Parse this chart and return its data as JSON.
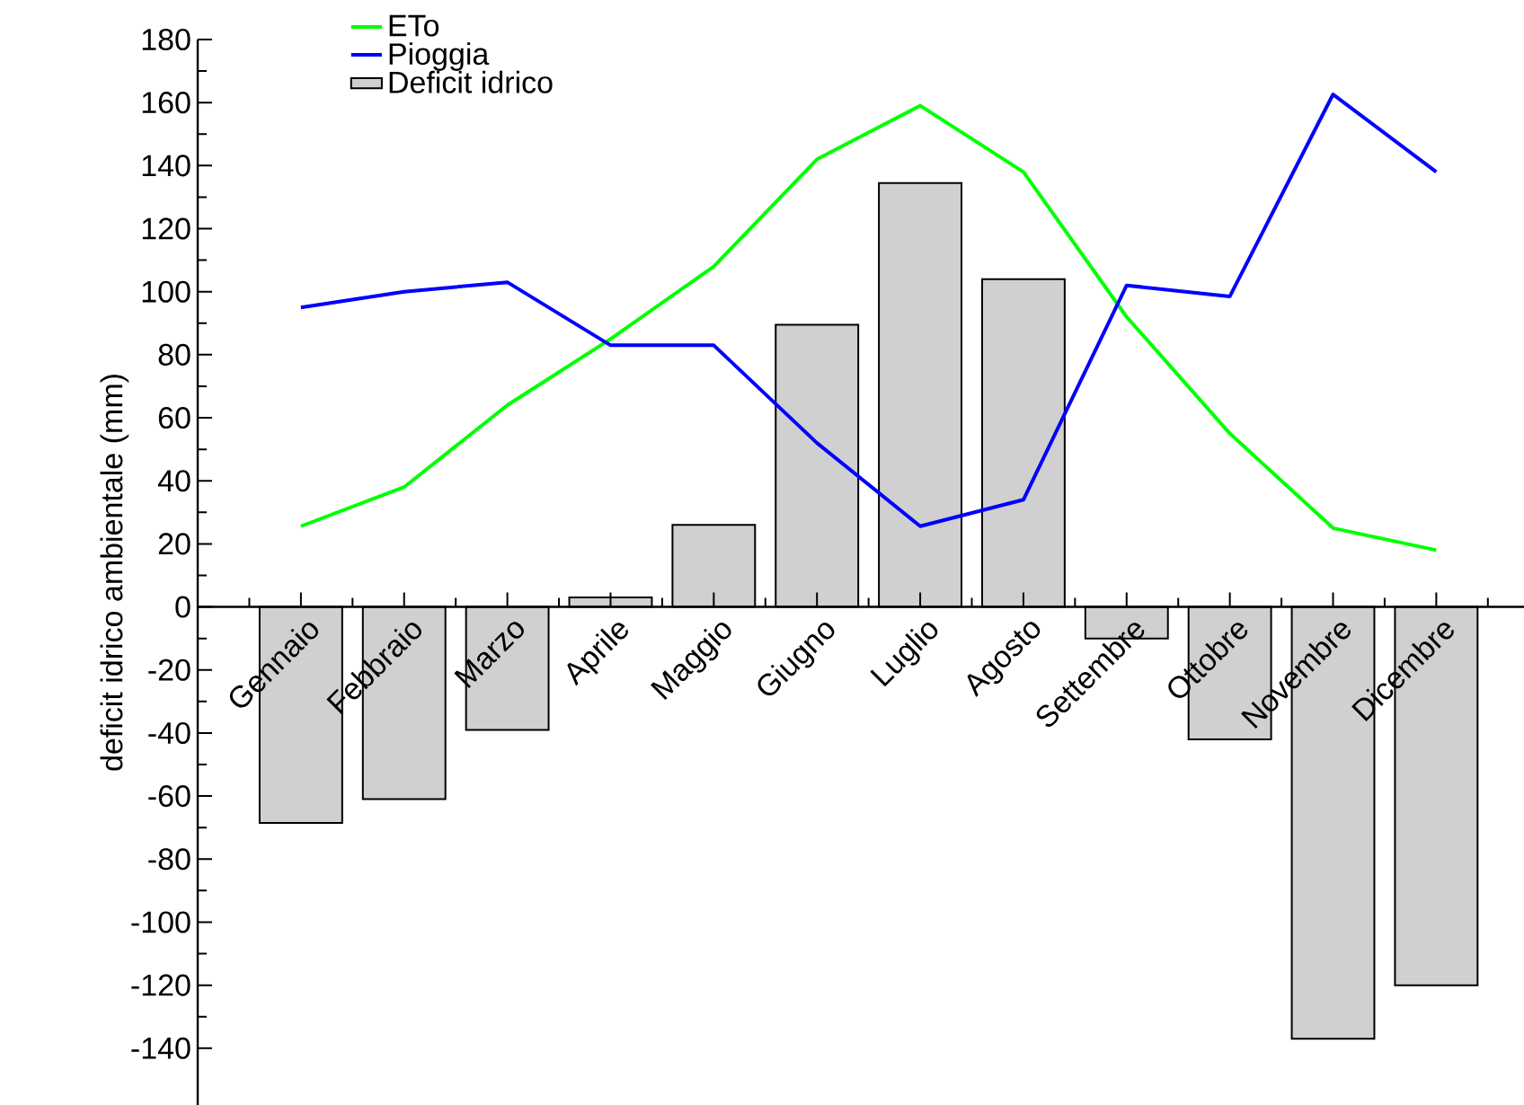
{
  "chart_data": {
    "type": "bar",
    "ylabel": "deficit idrico ambientale (mm)",
    "categories": [
      "Gennaio",
      "Febbraio",
      "Marzo",
      "Aprile",
      "Maggio",
      "Giugno",
      "Luglio",
      "Agosto",
      "Settembre",
      "Ottobre",
      "Novembre",
      "Dicembre"
    ],
    "series": [
      {
        "name": "ETo",
        "type": "line",
        "color": "#00ff00",
        "values": [
          25.6,
          38,
          64,
          85,
          108,
          142,
          159,
          138,
          92,
          55,
          25,
          18
        ]
      },
      {
        "name": "Pioggia",
        "type": "line",
        "color": "#0000ff",
        "values": [
          95,
          100,
          103,
          83,
          83,
          52,
          25.6,
          34,
          102,
          98.5,
          162.6,
          138
        ]
      },
      {
        "name": "Deficit idrico",
        "color": "#d0d0d0",
        "values": [
          -68.5,
          -61,
          -39,
          3,
          26,
          89.5,
          134.5,
          104,
          -10,
          -42,
          -137,
          -120
        ]
      }
    ],
    "ylim": [
      -158,
      180
    ],
    "yticks": [
      -140,
      -120,
      -100,
      -80,
      -60,
      -40,
      -20,
      0,
      20,
      40,
      60,
      80,
      100,
      120,
      140,
      160,
      180
    ],
    "grid": false,
    "legend": "top left",
    "marker": "none",
    "line_style": "solid"
  }
}
